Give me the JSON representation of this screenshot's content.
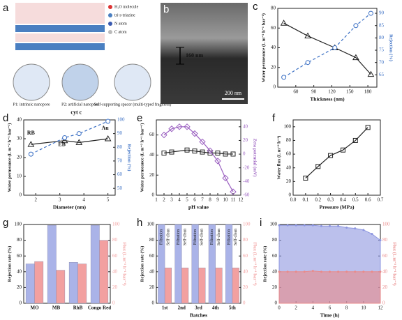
{
  "diagram": {
    "a": {
      "label": "a",
      "legend": [
        "H₂O molecule",
        "tri-s-triazine",
        "N atom",
        "C atom"
      ],
      "captions": [
        "P1: intrinsic nanopore",
        "P2: artificial nanopore",
        "Self-supporting spacer (multi-typed fragment)"
      ]
    },
    "b": {
      "label": "b",
      "thickness": "160 nm",
      "scale": "200 nm"
    }
  },
  "chart_data": [
    {
      "type": "line",
      "label": "c",
      "x_label": "Thickness (nm)",
      "y_label": "Water permeance (L m⁻² h⁻¹ bar⁻¹)",
      "y2_label": "Rejection (%)",
      "xlim": [
        30,
        195
      ],
      "xticks": [
        60,
        90,
        120,
        150,
        180
      ],
      "ylim": [
        0,
        80
      ],
      "yticks": [
        0,
        20,
        40,
        60,
        80
      ],
      "y2lim": [
        60,
        92
      ],
      "y2ticks": [
        65,
        70,
        75,
        80,
        85,
        90
      ],
      "series": [
        {
          "x": [
            40,
            80,
            125,
            160,
            185
          ],
          "values": [
            65,
            52,
            40,
            30,
            13
          ],
          "color": "#222222",
          "marker": "triangle",
          "dash": false
        },
        {
          "x": [
            40,
            80,
            125,
            160,
            185
          ],
          "values": [
            64,
            70,
            76,
            85,
            90
          ],
          "color": "#3a6fc4",
          "marker": "circle",
          "dash": true,
          "axis": "y2"
        }
      ]
    },
    {
      "type": "line",
      "label": "d",
      "x_label": "Diameter (nm)",
      "y_label": "Water permeance (L m⁻² h⁻¹ bar⁻¹)",
      "y2_label": "Rejection (%)",
      "xlim": [
        1.5,
        5.3
      ],
      "xticks": [
        2,
        3,
        4,
        5
      ],
      "ylim": [
        0,
        40
      ],
      "yticks": [
        0,
        10,
        20,
        30,
        40
      ],
      "y2lim": [
        45,
        100
      ],
      "y2ticks": [
        50,
        60,
        70,
        80,
        90,
        100
      ],
      "annotations": [
        "RB",
        "EB",
        "cyt c",
        "Au"
      ],
      "series": [
        {
          "x": [
            1.8,
            3.2,
            3.8,
            5
          ],
          "values": [
            27,
            29,
            28,
            30
          ],
          "color": "#222222",
          "marker": "triangle",
          "dash": false
        },
        {
          "x": [
            1.8,
            3.2,
            3.8,
            5
          ],
          "values": [
            75,
            87,
            90,
            99
          ],
          "color": "#3a6fc4",
          "marker": "circle",
          "dash": true,
          "axis": "y2"
        }
      ]
    },
    {
      "type": "line",
      "label": "e",
      "x_label": "pH value",
      "y_label": "Water permeance (L m⁻² h⁻¹ bar⁻¹)",
      "y2_label": "Zeta potential (mV)",
      "xlim": [
        1,
        12
      ],
      "xticks": [
        1,
        2,
        3,
        4,
        5,
        6,
        7,
        8,
        9,
        10,
        11,
        12
      ],
      "ylim": [
        0,
        75
      ],
      "yticks": [
        0,
        20,
        40,
        60
      ],
      "y2lim": [
        -60,
        50
      ],
      "y2ticks": [
        -60,
        -40,
        -20,
        0,
        20,
        40
      ],
      "series": [
        {
          "x": [
            2,
            3,
            5,
            6,
            7,
            8,
            9,
            10,
            11
          ],
          "values": [
            42,
            43,
            45,
            44,
            43,
            42,
            42,
            41,
            41
          ],
          "color": "#222222",
          "marker": "square",
          "dash": false
        },
        {
          "x": [
            2,
            3,
            4,
            5,
            6,
            7,
            8,
            9,
            10,
            11
          ],
          "values": [
            28,
            37,
            40,
            40,
            30,
            18,
            5,
            -10,
            -35,
            -55
          ],
          "color": "#9a5fc0",
          "marker": "diamond",
          "dash": false,
          "axis": "y2"
        }
      ]
    },
    {
      "type": "line",
      "label": "f",
      "x_label": "Pressure (MPa)",
      "y_label": "Water flux (L m⁻² h⁻¹)",
      "xlim": [
        0,
        0.7
      ],
      "xticks": [
        {
          "value": 0,
          "label": "0.0"
        },
        0.1,
        0.2,
        0.3,
        0.4,
        0.5,
        0.6,
        0.7
      ],
      "ylim": [
        0,
        110
      ],
      "yticks": [
        0,
        20,
        40,
        60,
        80,
        100
      ],
      "series": [
        {
          "x": [
            0.1,
            0.2,
            0.3,
            0.4,
            0.5,
            0.6
          ],
          "values": [
            25,
            42,
            58,
            66,
            80,
            99
          ],
          "color": "#222222",
          "marker": "square",
          "dash": false
        }
      ]
    },
    {
      "type": "bar",
      "label": "g",
      "y_label": "Rejection rate (%)",
      "y2_label": "Flux (L m⁻² h⁻¹ bar⁻¹)",
      "categories": [
        "MO",
        "MB",
        "RhB",
        "Congo Red"
      ],
      "ylim": [
        0,
        100
      ],
      "yticks": [
        0,
        20,
        40,
        60,
        80,
        100
      ],
      "y2lim": [
        0,
        100
      ],
      "y2ticks": [
        0,
        20,
        40,
        60,
        80,
        100
      ],
      "series": [
        {
          "values": [
            50,
            99,
            52,
            99
          ],
          "color": "#aab3e8"
        },
        {
          "values": [
            53,
            42,
            50,
            80
          ],
          "color": "#f2a0a0",
          "axis": "y2"
        }
      ]
    },
    {
      "type": "bar",
      "label": "h",
      "x_label": "Batches",
      "y_label": "Rejection rate (%)",
      "y2_label": "Flux (L m⁻² h⁻¹ bar⁻¹)",
      "categories": [
        "1st",
        "2nd",
        "3rd",
        "4th",
        "5th"
      ],
      "bar_labels": [
        "Filtration",
        "Self-clean"
      ],
      "ylim": [
        0,
        100
      ],
      "yticks": [
        0,
        20,
        40,
        60,
        80,
        100
      ],
      "y2lim": [
        0,
        100
      ],
      "y2ticks": [
        0,
        20,
        40,
        60,
        80,
        100
      ],
      "series": [
        {
          "values": [
            100,
            100,
            100,
            100,
            100
          ],
          "color": "#aab3e8"
        },
        {
          "values": [
            45,
            45,
            45,
            45,
            45
          ],
          "color": "#f2a0a0",
          "axis": "y2"
        }
      ]
    },
    {
      "type": "area",
      "label": "i",
      "x_label": "Time (h)",
      "y_label": "Rejection rate (%)",
      "y2_label": "Flux (L m⁻² h⁻¹ bar⁻¹)",
      "xlim": [
        0,
        12
      ],
      "xticks": [
        0,
        2,
        4,
        6,
        8,
        10,
        12
      ],
      "ylim": [
        0,
        100
      ],
      "yticks": [
        0,
        20,
        40,
        60,
        80,
        100
      ],
      "y2lim": [
        0,
        100
      ],
      "y2ticks": [
        0,
        20,
        40,
        60,
        80,
        100
      ],
      "series": [
        {
          "x": [
            0,
            1,
            2,
            3,
            4,
            5,
            6,
            7,
            8,
            9,
            10,
            11,
            12
          ],
          "values": [
            99,
            99,
            99,
            99,
            99,
            98,
            98,
            98,
            96,
            95,
            93,
            88,
            80
          ],
          "color": "#8d96e0"
        },
        {
          "x": [
            0,
            1,
            2,
            3,
            4,
            5,
            6,
            7,
            8,
            9,
            10,
            11,
            12
          ],
          "values": [
            40,
            40,
            40,
            40,
            41,
            40,
            40,
            40,
            40,
            40,
            40,
            40,
            40
          ],
          "color": "#e98a8a",
          "axis": "y2"
        }
      ]
    }
  ]
}
